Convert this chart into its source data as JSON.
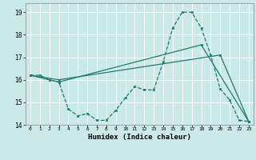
{
  "xlabel": "Humidex (Indice chaleur)",
  "ylabel": "",
  "xlim": [
    -0.5,
    23.5
  ],
  "ylim": [
    14,
    19.4
  ],
  "yticks": [
    14,
    15,
    16,
    17,
    18,
    19
  ],
  "xticks": [
    0,
    1,
    2,
    3,
    4,
    5,
    6,
    7,
    8,
    9,
    10,
    11,
    12,
    13,
    14,
    15,
    16,
    17,
    18,
    19,
    20,
    21,
    22,
    23
  ],
  "bg_color": "#cce9e9",
  "line_color": "#1e7b6e",
  "line1_x": [
    0,
    1,
    2,
    3,
    4,
    5,
    6,
    7,
    8,
    9,
    10,
    11,
    12,
    13,
    14,
    15,
    16,
    17,
    18,
    19,
    20,
    21,
    22,
    23
  ],
  "line1_y": [
    16.2,
    16.2,
    16.0,
    15.9,
    14.7,
    14.4,
    14.5,
    14.2,
    14.2,
    14.65,
    15.2,
    15.7,
    15.55,
    15.55,
    16.8,
    18.3,
    19.0,
    19.0,
    18.3,
    17.1,
    15.6,
    15.1,
    14.2,
    14.15
  ],
  "line2_x": [
    0,
    3,
    20,
    23
  ],
  "line2_y": [
    16.2,
    16.0,
    17.1,
    14.15
  ],
  "line3_x": [
    0,
    3,
    18,
    23
  ],
  "line3_y": [
    16.2,
    15.9,
    17.55,
    14.15
  ]
}
